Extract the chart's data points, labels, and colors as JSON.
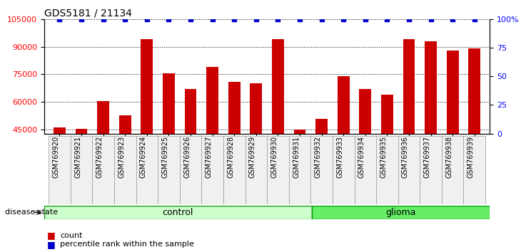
{
  "title": "GDS5181 / 21134",
  "samples": [
    "GSM769920",
    "GSM769921",
    "GSM769922",
    "GSM769923",
    "GSM769924",
    "GSM769925",
    "GSM769926",
    "GSM769927",
    "GSM769928",
    "GSM769929",
    "GSM769930",
    "GSM769931",
    "GSM769932",
    "GSM769933",
    "GSM769934",
    "GSM769935",
    "GSM769936",
    "GSM769937",
    "GSM769938",
    "GSM769939"
  ],
  "counts": [
    46500,
    45500,
    60500,
    53000,
    94000,
    75500,
    67000,
    79000,
    71000,
    70000,
    94000,
    45000,
    51000,
    74000,
    67000,
    64000,
    94000,
    93000,
    88000,
    89000
  ],
  "control_count": 12,
  "glioma_count": 8,
  "bar_color": "#cc0000",
  "dot_color": "#0000cc",
  "ylim_left": [
    43000,
    105000
  ],
  "yticks_left": [
    45000,
    60000,
    75000,
    90000,
    105000
  ],
  "ylim_right": [
    0,
    100
  ],
  "yticks_right": [
    0,
    25,
    50,
    75,
    100
  ],
  "ylabel_right_labels": [
    "0",
    "25",
    "50",
    "75",
    "100%"
  ],
  "control_label": "control",
  "glioma_label": "glioma",
  "disease_state_label": "disease state",
  "legend_count_label": "count",
  "legend_percentile_label": "percentile rank within the sample",
  "control_color": "#ccffcc",
  "glioma_color": "#66ee66",
  "border_color": "#009900",
  "bg_color": "#f0f0f0"
}
